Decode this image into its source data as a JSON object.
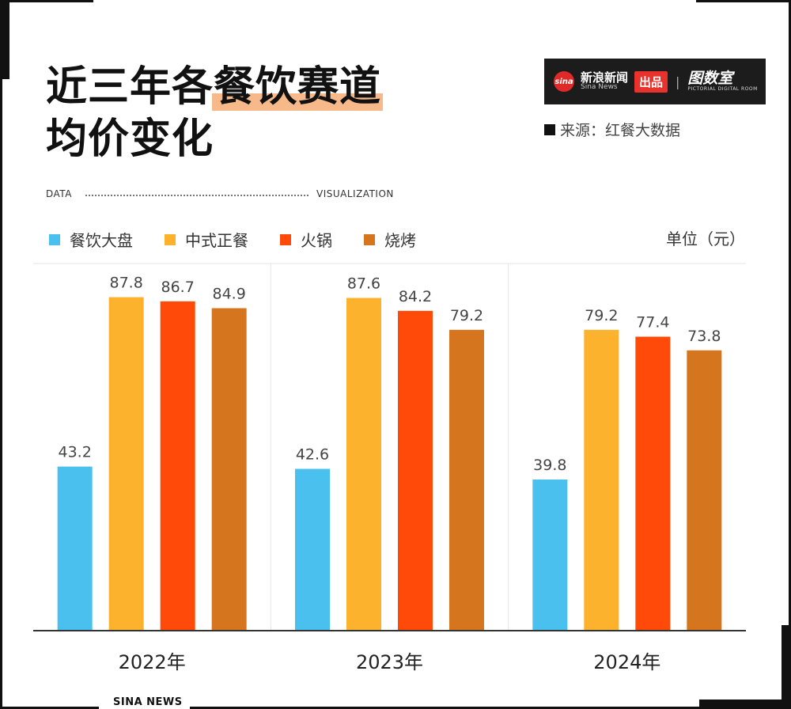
{
  "header": {
    "title_line1_plain": "近三年各",
    "title_line1_highlight": "餐饮赛道",
    "title_line2": "均价变化",
    "dv_left": "DATA",
    "dv_right": "VISUALIZATION"
  },
  "logo": {
    "sina_mark": "sina",
    "sina_cn": "新浪新闻",
    "sina_en": "Sina News",
    "produce": "出品",
    "separator": "|",
    "room_cn": "图数室",
    "room_en": "PICTORIAL DIGITAL ROOM"
  },
  "source": "来源：红餐大数据",
  "unit": "单位（元）",
  "footer": "SINA NEWS",
  "colors": {
    "frame": "#111111",
    "highlight": "#f7b98a",
    "grid": "#e6e6e6",
    "axis": "#333333"
  },
  "chart_data": {
    "type": "bar",
    "categories": [
      "2022年",
      "2023年",
      "2024年"
    ],
    "series": [
      {
        "name": "餐饮大盘",
        "color": "#4ac0ee",
        "values": [
          43.2,
          42.6,
          39.8
        ]
      },
      {
        "name": "中式正餐",
        "color": "#fcb22c",
        "values": [
          87.8,
          87.6,
          79.2
        ]
      },
      {
        "name": "火锅",
        "color": "#ff4a09",
        "values": [
          86.7,
          84.2,
          77.4
        ]
      },
      {
        "name": "烧烤",
        "color": "#d5751e",
        "values": [
          84.9,
          79.2,
          73.8
        ]
      }
    ],
    "ylim": [
      0,
      100
    ],
    "grid": true,
    "legend": "top-left"
  }
}
